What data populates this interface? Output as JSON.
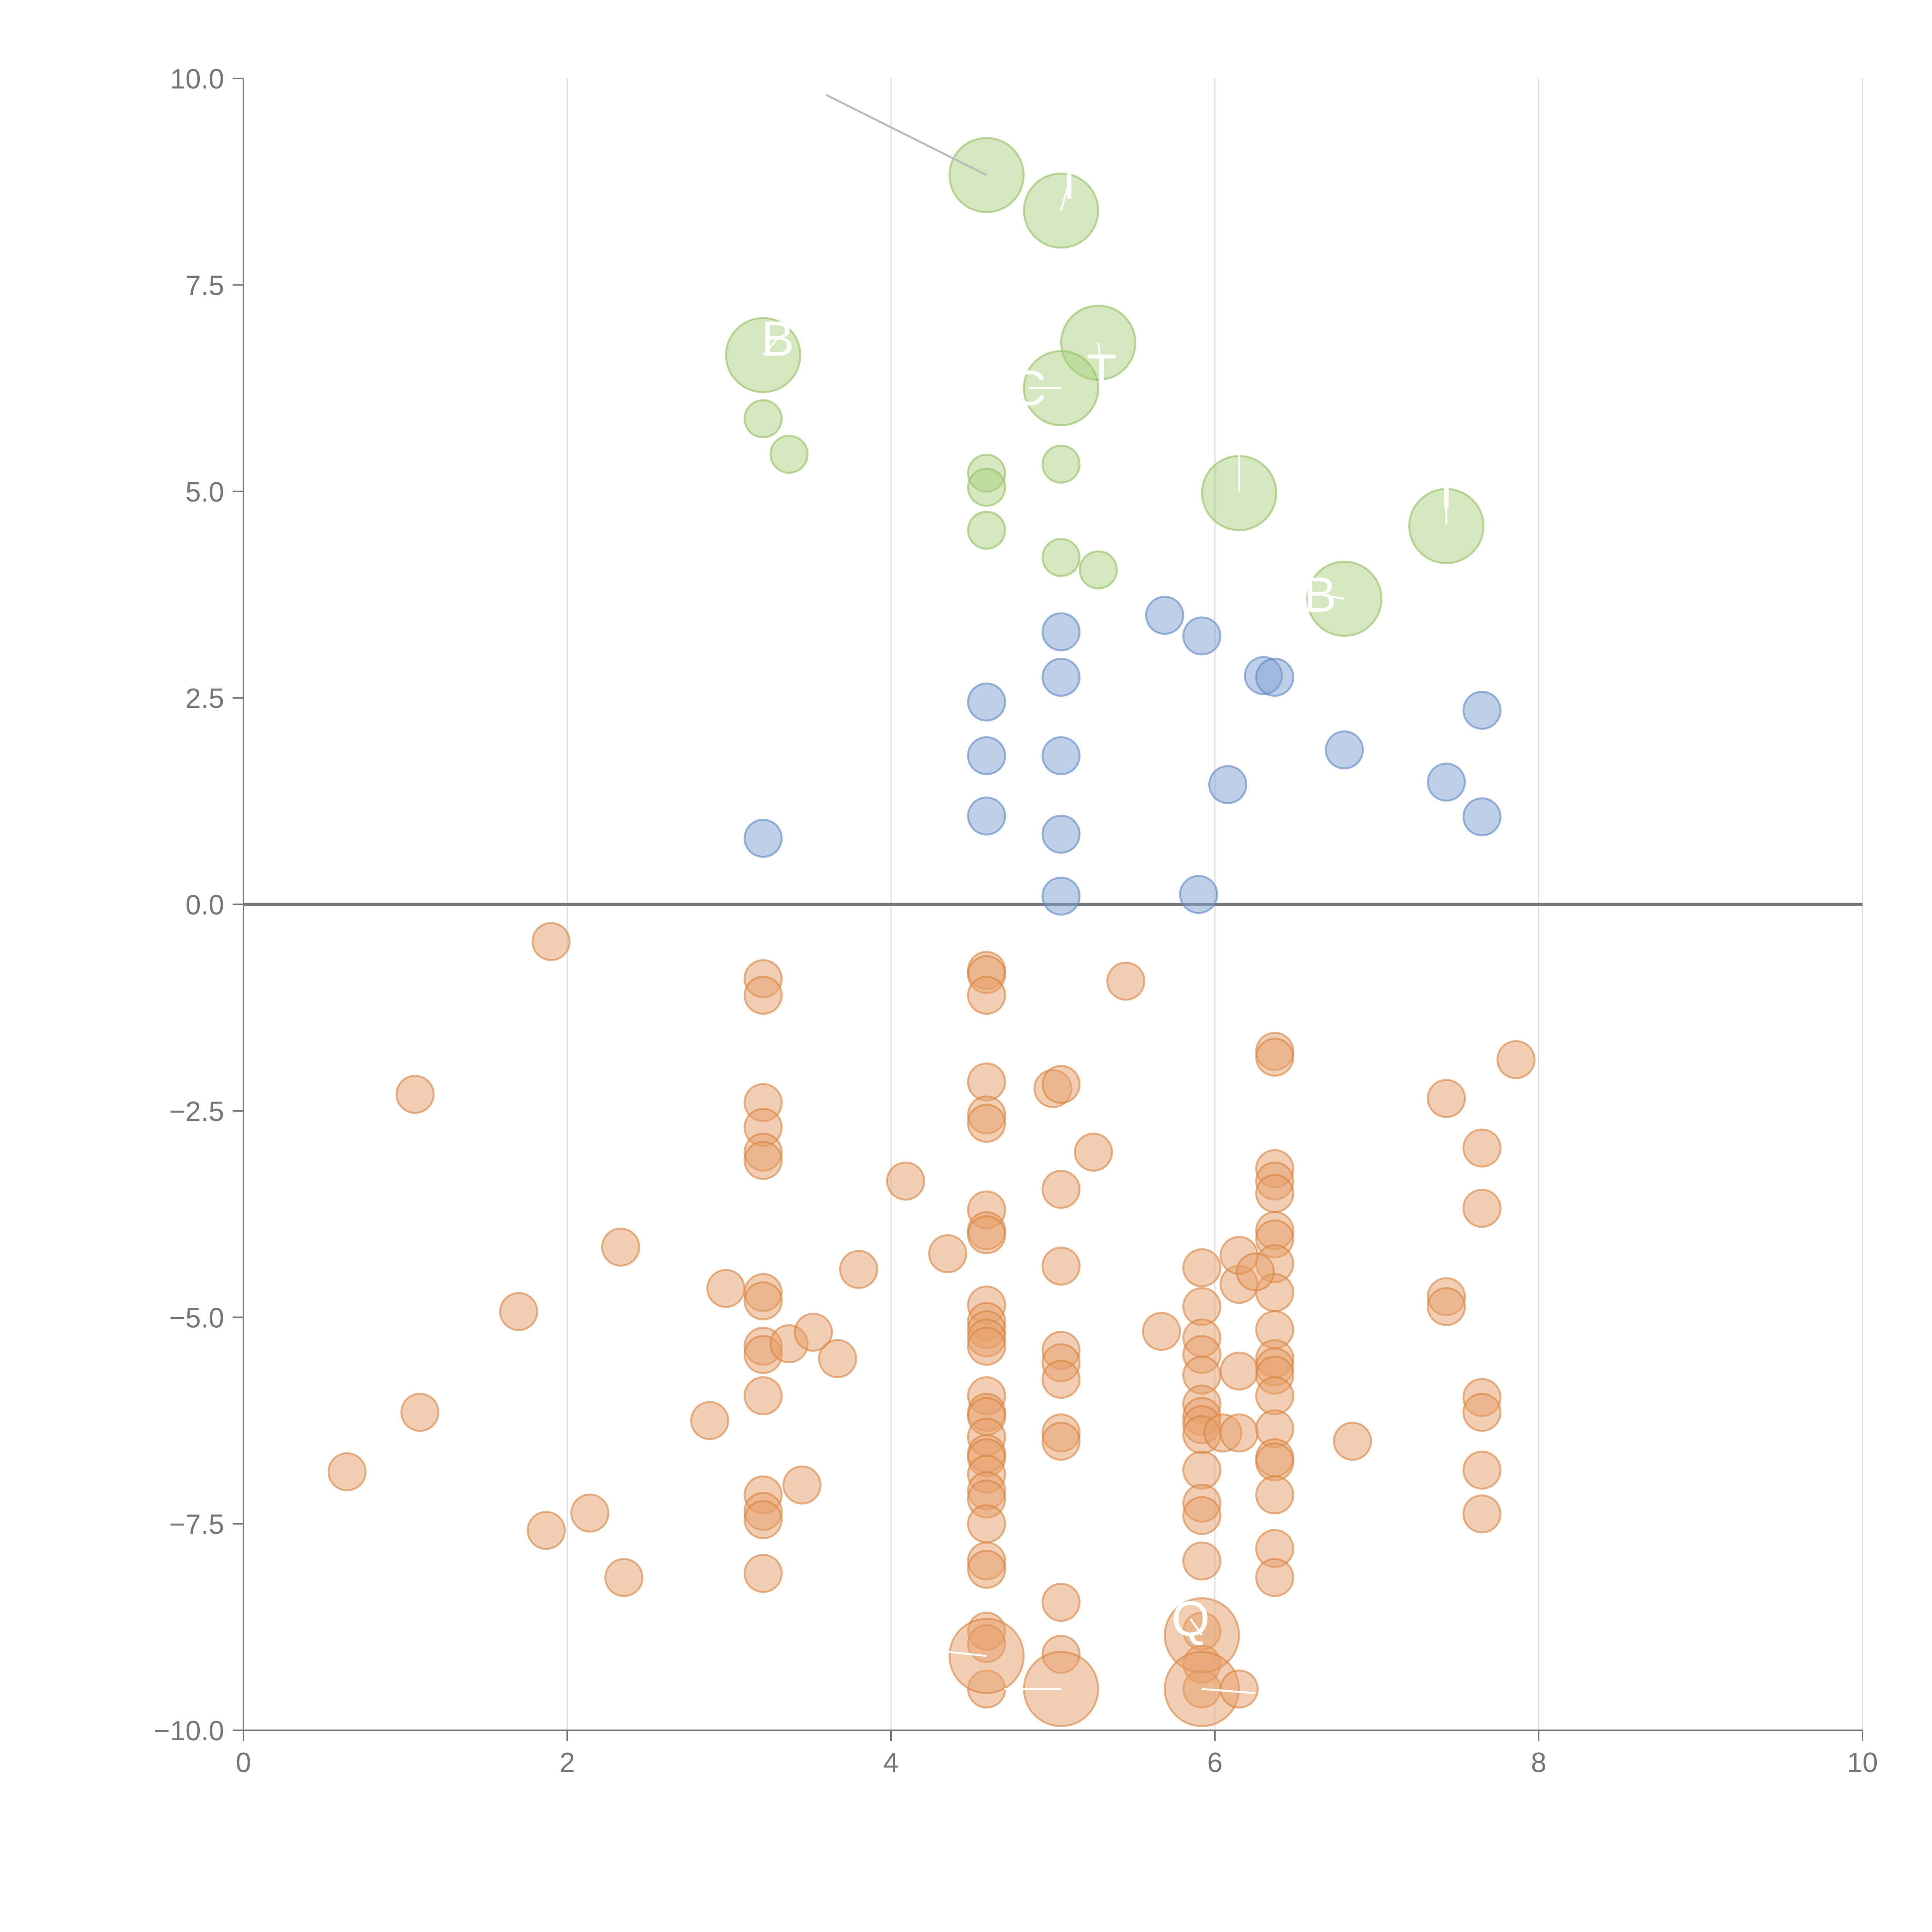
{
  "chart_data": {
    "type": "scatter",
    "title": "",
    "xlabel": "",
    "ylabel": "",
    "xlim": [
      0,
      10
    ],
    "ylim": [
      -10,
      10
    ],
    "x_ticks": [
      0,
      2,
      4,
      6,
      8,
      10
    ],
    "y_ticks": [
      -10,
      -7.5,
      -5,
      -2.5,
      0,
      2.5,
      5,
      7.5,
      10
    ],
    "x_tick_labels": [
      "0",
      "2",
      "4",
      "6",
      "8",
      "10"
    ],
    "y_tick_labels": [
      "−10.0",
      "−7.5",
      "−5.0",
      "−2.5",
      "0.0",
      "2.5",
      "5.0",
      "7.5",
      "10.0"
    ],
    "grid": {
      "vertical": true,
      "horizontal": false
    },
    "zero_line": true,
    "legend": "none",
    "series": [
      {
        "name": "green",
        "color": "#acd07e",
        "stroke": "#8fbf5e",
        "opacity": 0.5,
        "points": [
          {
            "x": 4.59,
            "y": 8.83,
            "size": "large"
          },
          {
            "x": 5.05,
            "y": 8.4,
            "size": "large"
          },
          {
            "x": 5.28,
            "y": 6.8,
            "size": "large"
          },
          {
            "x": 5.05,
            "y": 6.25,
            "size": "large"
          },
          {
            "x": 3.21,
            "y": 6.65,
            "size": "large"
          },
          {
            "x": 6.15,
            "y": 4.98,
            "size": "large"
          },
          {
            "x": 7.43,
            "y": 4.58,
            "size": "large"
          },
          {
            "x": 6.8,
            "y": 3.7,
            "size": "large"
          },
          {
            "x": 3.21,
            "y": 5.88,
            "size": "small"
          },
          {
            "x": 3.37,
            "y": 5.45,
            "size": "small"
          },
          {
            "x": 4.59,
            "y": 5.22,
            "size": "small"
          },
          {
            "x": 4.59,
            "y": 5.05,
            "size": "small"
          },
          {
            "x": 5.05,
            "y": 5.33,
            "size": "small"
          },
          {
            "x": 4.59,
            "y": 4.53,
            "size": "small"
          },
          {
            "x": 5.05,
            "y": 4.2,
            "size": "small"
          },
          {
            "x": 5.28,
            "y": 4.05,
            "size": "small"
          }
        ]
      },
      {
        "name": "blue",
        "color": "#7d9fd1",
        "stroke": "#5f86c4",
        "opacity": 0.5,
        "points": [
          {
            "x": 5.69,
            "y": 3.5,
            "size": "small"
          },
          {
            "x": 5.92,
            "y": 3.25,
            "size": "small"
          },
          {
            "x": 5.05,
            "y": 3.3,
            "size": "small"
          },
          {
            "x": 6.3,
            "y": 2.77,
            "size": "small"
          },
          {
            "x": 6.37,
            "y": 2.75,
            "size": "small"
          },
          {
            "x": 5.05,
            "y": 2.75,
            "size": "small"
          },
          {
            "x": 4.59,
            "y": 2.45,
            "size": "small"
          },
          {
            "x": 7.65,
            "y": 2.35,
            "size": "small"
          },
          {
            "x": 6.8,
            "y": 1.87,
            "size": "small"
          },
          {
            "x": 4.59,
            "y": 1.8,
            "size": "small"
          },
          {
            "x": 5.05,
            "y": 1.8,
            "size": "small"
          },
          {
            "x": 7.43,
            "y": 1.48,
            "size": "small"
          },
          {
            "x": 6.08,
            "y": 1.45,
            "size": "small"
          },
          {
            "x": 4.59,
            "y": 1.07,
            "size": "small"
          },
          {
            "x": 7.65,
            "y": 1.06,
            "size": "small"
          },
          {
            "x": 5.05,
            "y": 0.85,
            "size": "small"
          },
          {
            "x": 3.21,
            "y": 0.8,
            "size": "small"
          },
          {
            "x": 5.05,
            "y": 0.1,
            "size": "small"
          },
          {
            "x": 5.9,
            "y": 0.12,
            "size": "small"
          }
        ]
      },
      {
        "name": "orange",
        "color": "#e6a06a",
        "stroke": "#d9823e",
        "opacity": 0.5,
        "points": [
          {
            "x": 1.9,
            "y": -0.45
          },
          {
            "x": 1.06,
            "y": -2.3
          },
          {
            "x": 1.09,
            "y": -6.15
          },
          {
            "x": 0.64,
            "y": -6.87
          },
          {
            "x": 1.7,
            "y": -4.93
          },
          {
            "x": 1.87,
            "y": -7.58
          },
          {
            "x": 2.14,
            "y": -7.37
          },
          {
            "x": 2.33,
            "y": -4.15
          },
          {
            "x": 2.35,
            "y": -8.15
          },
          {
            "x": 2.88,
            "y": -6.25
          },
          {
            "x": 2.98,
            "y": -4.65
          },
          {
            "x": 3.21,
            "y": -0.9
          },
          {
            "x": 3.21,
            "y": -1.1
          },
          {
            "x": 3.21,
            "y": -2.4
          },
          {
            "x": 3.21,
            "y": -2.7
          },
          {
            "x": 3.21,
            "y": -3.0
          },
          {
            "x": 3.21,
            "y": -3.1
          },
          {
            "x": 3.21,
            "y": -4.7
          },
          {
            "x": 3.21,
            "y": -4.8
          },
          {
            "x": 3.21,
            "y": -5.35
          },
          {
            "x": 3.21,
            "y": -5.45
          },
          {
            "x": 3.21,
            "y": -5.95
          },
          {
            "x": 3.21,
            "y": -7.15
          },
          {
            "x": 3.21,
            "y": -7.35
          },
          {
            "x": 3.21,
            "y": -7.45
          },
          {
            "x": 3.21,
            "y": -8.1
          },
          {
            "x": 3.37,
            "y": -5.32
          },
          {
            "x": 3.52,
            "y": -5.18
          },
          {
            "x": 3.67,
            "y": -5.5
          },
          {
            "x": 3.45,
            "y": -7.03
          },
          {
            "x": 3.8,
            "y": -4.42
          },
          {
            "x": 4.09,
            "y": -3.35
          },
          {
            "x": 4.35,
            "y": -4.23
          },
          {
            "x": 4.59,
            "y": -0.8
          },
          {
            "x": 4.59,
            "y": -0.85
          },
          {
            "x": 4.59,
            "y": -1.1
          },
          {
            "x": 4.59,
            "y": -2.15
          },
          {
            "x": 4.59,
            "y": -2.55
          },
          {
            "x": 4.59,
            "y": -2.65
          },
          {
            "x": 4.59,
            "y": -3.7
          },
          {
            "x": 4.59,
            "y": -3.95
          },
          {
            "x": 4.59,
            "y": -4.0
          },
          {
            "x": 4.59,
            "y": -4.85
          },
          {
            "x": 4.59,
            "y": -5.05
          },
          {
            "x": 4.59,
            "y": -5.15
          },
          {
            "x": 4.59,
            "y": -5.25
          },
          {
            "x": 4.59,
            "y": -5.35
          },
          {
            "x": 4.59,
            "y": -5.95
          },
          {
            "x": 4.59,
            "y": -6.15
          },
          {
            "x": 4.59,
            "y": -6.2
          },
          {
            "x": 4.59,
            "y": -6.45
          },
          {
            "x": 4.59,
            "y": -6.65
          },
          {
            "x": 4.59,
            "y": -6.7
          },
          {
            "x": 4.59,
            "y": -6.9
          },
          {
            "x": 4.59,
            "y": -7.1
          },
          {
            "x": 4.59,
            "y": -7.2
          },
          {
            "x": 4.59,
            "y": -7.5
          },
          {
            "x": 4.59,
            "y": -7.95
          },
          {
            "x": 4.59,
            "y": -8.05
          },
          {
            "x": 4.59,
            "y": -8.8
          },
          {
            "x": 4.59,
            "y": -8.95
          },
          {
            "x": 4.59,
            "y": -9.5
          },
          {
            "x": 4.59,
            "y": -9.1,
            "size": "large"
          },
          {
            "x": 5.0,
            "y": -2.23
          },
          {
            "x": 5.05,
            "y": -2.18
          },
          {
            "x": 5.05,
            "y": -3.45
          },
          {
            "x": 5.05,
            "y": -4.38
          },
          {
            "x": 5.05,
            "y": -5.4
          },
          {
            "x": 5.05,
            "y": -5.55
          },
          {
            "x": 5.05,
            "y": -5.75
          },
          {
            "x": 5.05,
            "y": -6.4
          },
          {
            "x": 5.05,
            "y": -6.5
          },
          {
            "x": 5.05,
            "y": -8.45
          },
          {
            "x": 5.05,
            "y": -9.08
          },
          {
            "x": 5.05,
            "y": -9.5,
            "size": "large"
          },
          {
            "x": 5.25,
            "y": -3.0
          },
          {
            "x": 5.45,
            "y": -0.93
          },
          {
            "x": 5.67,
            "y": -5.17
          },
          {
            "x": 5.92,
            "y": -4.4
          },
          {
            "x": 5.92,
            "y": -4.87
          },
          {
            "x": 5.92,
            "y": -5.25
          },
          {
            "x": 5.92,
            "y": -5.45
          },
          {
            "x": 5.92,
            "y": -5.7
          },
          {
            "x": 5.92,
            "y": -6.05
          },
          {
            "x": 5.92,
            "y": -6.2
          },
          {
            "x": 5.92,
            "y": -6.3
          },
          {
            "x": 5.92,
            "y": -6.42
          },
          {
            "x": 5.92,
            "y": -6.85
          },
          {
            "x": 5.92,
            "y": -7.25
          },
          {
            "x": 5.92,
            "y": -7.4
          },
          {
            "x": 5.92,
            "y": -7.95
          },
          {
            "x": 5.92,
            "y": -8.8
          },
          {
            "x": 5.92,
            "y": -9.2
          },
          {
            "x": 5.92,
            "y": -9.5
          },
          {
            "x": 5.92,
            "y": -8.85,
            "size": "large"
          },
          {
            "x": 5.92,
            "y": -9.5,
            "size": "large"
          },
          {
            "x": 6.05,
            "y": -6.4
          },
          {
            "x": 6.15,
            "y": -6.4
          },
          {
            "x": 6.15,
            "y": -5.65
          },
          {
            "x": 6.15,
            "y": -4.6
          },
          {
            "x": 6.15,
            "y": -4.25
          },
          {
            "x": 6.15,
            "y": -9.5
          },
          {
            "x": 6.37,
            "y": -1.78
          },
          {
            "x": 6.37,
            "y": -1.85
          },
          {
            "x": 6.37,
            "y": -3.2
          },
          {
            "x": 6.37,
            "y": -3.35
          },
          {
            "x": 6.37,
            "y": -3.5
          },
          {
            "x": 6.37,
            "y": -3.95
          },
          {
            "x": 6.37,
            "y": -4.05
          },
          {
            "x": 6.37,
            "y": -4.35
          },
          {
            "x": 6.37,
            "y": -4.7
          },
          {
            "x": 6.37,
            "y": -5.15
          },
          {
            "x": 6.37,
            "y": -5.5
          },
          {
            "x": 6.37,
            "y": -5.6
          },
          {
            "x": 6.37,
            "y": -5.7
          },
          {
            "x": 6.37,
            "y": -5.95
          },
          {
            "x": 6.37,
            "y": -6.35
          },
          {
            "x": 6.37,
            "y": -6.7
          },
          {
            "x": 6.37,
            "y": -6.75
          },
          {
            "x": 6.37,
            "y": -7.15
          },
          {
            "x": 6.37,
            "y": -7.8
          },
          {
            "x": 6.37,
            "y": -8.15
          },
          {
            "x": 6.25,
            "y": -4.45
          },
          {
            "x": 6.85,
            "y": -6.5
          },
          {
            "x": 7.43,
            "y": -2.35
          },
          {
            "x": 7.43,
            "y": -4.75
          },
          {
            "x": 7.43,
            "y": -4.87
          },
          {
            "x": 7.65,
            "y": -2.95
          },
          {
            "x": 7.65,
            "y": -3.68
          },
          {
            "x": 7.65,
            "y": -5.97
          },
          {
            "x": 7.65,
            "y": -6.15
          },
          {
            "x": 7.65,
            "y": -6.85
          },
          {
            "x": 7.65,
            "y": -7.38
          },
          {
            "x": 7.86,
            "y": -1.88
          }
        ]
      }
    ],
    "annotations": [
      {
        "text": "",
        "x": 4.59,
        "y": 8.83,
        "tx": 3.6,
        "ty": 9.8,
        "line_color": "#bbbbbb"
      },
      {
        "text": "T",
        "x": 5.05,
        "y": 8.4,
        "tx": 5.1,
        "ty": 8.75,
        "line_color": "#ffffff"
      },
      {
        "text": "B",
        "x": 3.21,
        "y": 6.65,
        "tx": 3.3,
        "ty": 6.85,
        "line_color": "#ffffff"
      },
      {
        "text": "T",
        "x": 5.28,
        "y": 6.8,
        "tx": 5.3,
        "ty": 6.45,
        "line_color": "#ffffff"
      },
      {
        "text": "C",
        "x": 5.05,
        "y": 6.25,
        "tx": 4.85,
        "ty": 6.25,
        "line_color": "#ffffff"
      },
      {
        "text": "",
        "x": 6.15,
        "y": 5.0,
        "tx": 6.15,
        "ty": 5.6,
        "line_color": "#ffffff"
      },
      {
        "text": "T",
        "x": 7.43,
        "y": 4.6,
        "tx": 7.43,
        "ty": 5.0,
        "line_color": "#ffffff"
      },
      {
        "text": "B",
        "x": 6.8,
        "y": 3.7,
        "tx": 6.65,
        "ty": 3.75,
        "line_color": "#ffffff"
      },
      {
        "text": "Q",
        "x": 5.92,
        "y": -8.85,
        "tx": 5.85,
        "ty": -8.65,
        "line_color": "#ffffff"
      },
      {
        "text": "",
        "x": 4.59,
        "y": -9.1,
        "tx": 4.1,
        "ty": -9.0,
        "line_color": "#ffffff"
      },
      {
        "text": "",
        "x": 5.05,
        "y": -9.5,
        "tx": 4.7,
        "ty": -9.5,
        "line_color": "#ffffff"
      },
      {
        "text": "",
        "x": 5.92,
        "y": -9.5,
        "tx": 6.25,
        "ty": -9.55,
        "line_color": "#ffffff"
      }
    ]
  }
}
